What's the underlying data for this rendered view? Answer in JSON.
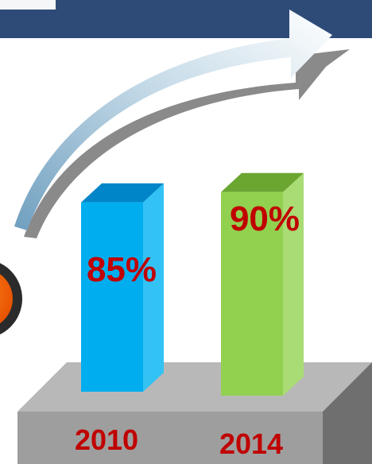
{
  "chart_data": {
    "type": "bar",
    "categories": [
      "2010",
      "2014"
    ],
    "values": [
      85,
      90
    ],
    "value_labels": [
      "85%",
      "90%"
    ],
    "title": "",
    "xlabel": "",
    "ylabel": "",
    "ylim": [
      0,
      100
    ],
    "grid": false,
    "legend": "none"
  },
  "colors": {
    "header_band": "#2e4b78",
    "bar_2010_front": "#00aeef",
    "bar_2010_top": "#0086c8",
    "bar_2010_side": "#33c2f4",
    "bar_2014_front": "#92d050",
    "bar_2014_top": "#6aa630",
    "bar_2014_side": "#a9dc74",
    "platform_top": "#b8b8b8",
    "platform_front": "#9e9e9e",
    "platform_side": "#6f6f6f",
    "label_red": "#c00000",
    "arrow_light": "#ffffff",
    "arrow_dark": "#8fb4cc",
    "circle_orange": "#ff6a00"
  },
  "decorations": {
    "arrow_icon": "growth-arrow-icon",
    "circle_icon": "orange-circle-icon"
  }
}
